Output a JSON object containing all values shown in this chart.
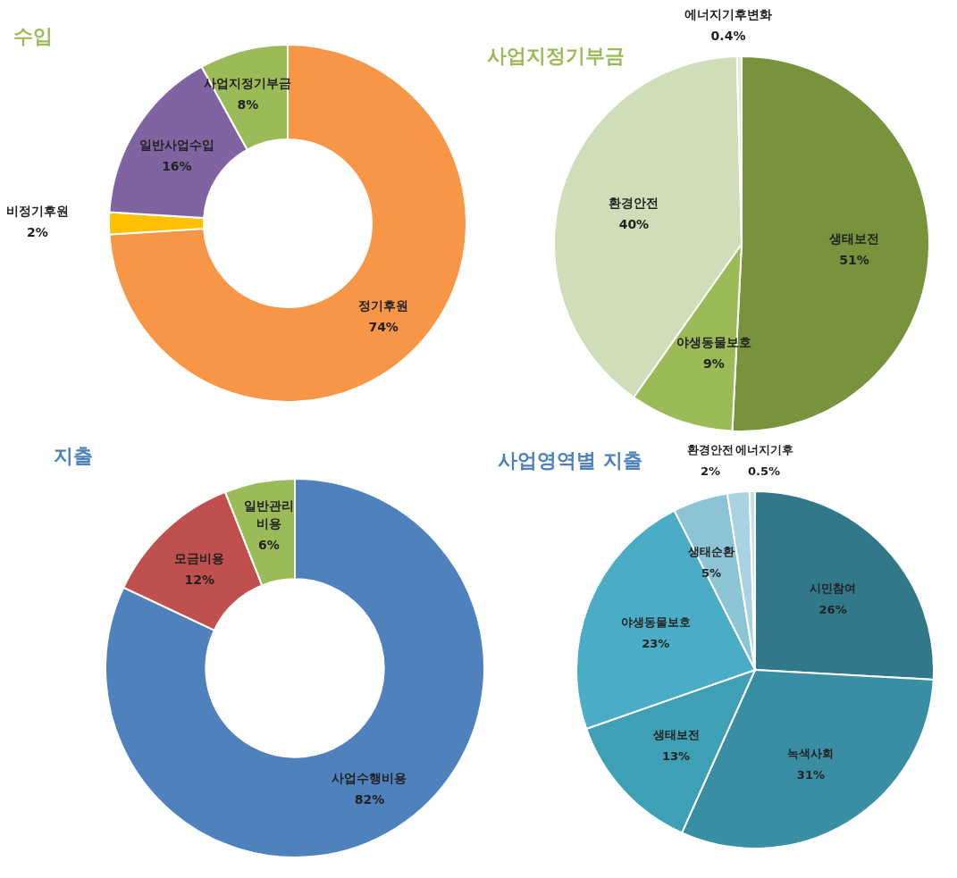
{
  "chart_data": [
    {
      "type": "donut",
      "title": "수입",
      "categories": [
        "정기후원",
        "비정기후원",
        "일반사업수입",
        "사업지정기부금"
      ],
      "values": [
        74,
        2,
        16,
        8
      ],
      "colors": [
        "#f79646",
        "#ffc000",
        "#8064a2",
        "#9bbb59"
      ],
      "value_labels": [
        "74%",
        "2%",
        "16%",
        "8%"
      ]
    },
    {
      "type": "pie",
      "title": "사업지정기부금",
      "categories": [
        "생태보전",
        "야생동물보호",
        "환경안전",
        "에너지기후변화"
      ],
      "values": [
        51,
        9,
        40,
        0.4
      ],
      "colors": [
        "#77933c",
        "#9bbb59",
        "#cfddb8",
        "#e4ecd6"
      ],
      "value_labels": [
        "51%",
        "9%",
        "40%",
        "0.4%"
      ]
    },
    {
      "type": "donut",
      "title": "지출",
      "categories": [
        "사업수행비용",
        "모금비용",
        "일반관리비용"
      ],
      "values": [
        82,
        12,
        6
      ],
      "colors": [
        "#4f81bd",
        "#c0504d",
        "#9bbb59"
      ],
      "value_labels": [
        "82%",
        "12%",
        "6%"
      ]
    },
    {
      "type": "pie",
      "title": "사업영역별 지출",
      "categories": [
        "시민참여",
        "녹색사회",
        "생태보전",
        "야생동물보호",
        "생태순환",
        "환경안전",
        "에너지기후"
      ],
      "values": [
        26,
        31,
        13,
        23,
        5,
        2,
        0.5
      ],
      "colors": [
        "#31788a",
        "#3a8ea4",
        "#3f9fb5",
        "#4bacc6",
        "#8cc4d6",
        "#a9d3e0",
        "#c5e0e8"
      ],
      "value_labels": [
        "26%",
        "31%",
        "13%",
        "23%",
        "5%",
        "2%",
        "0.5%"
      ]
    }
  ]
}
